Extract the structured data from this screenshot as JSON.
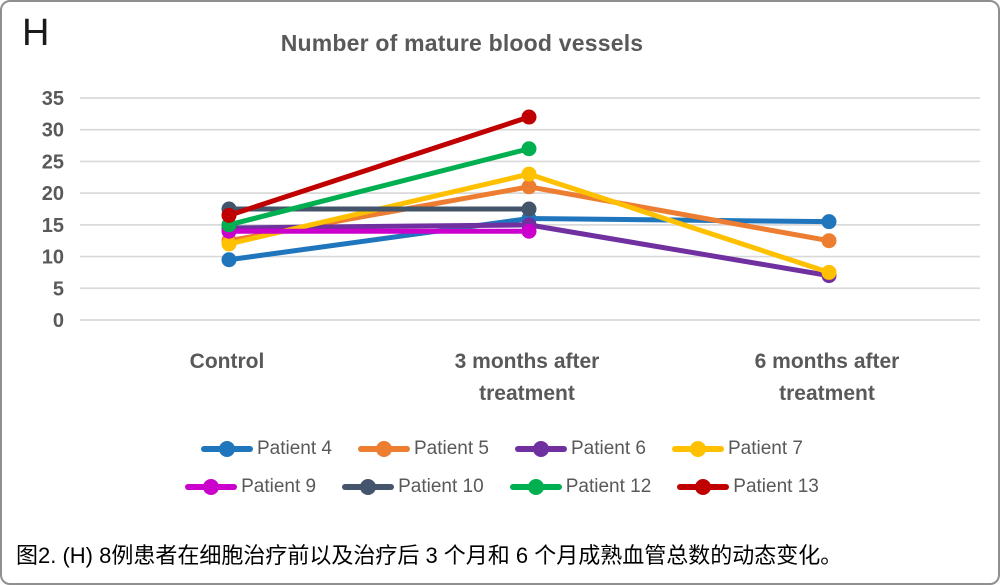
{
  "figure_label": "H",
  "caption": "图2. (H) 8例患者在细胞治疗前以及治疗后 3 个月和 6 个月成熟血管总数的动态变化。",
  "chart_data": {
    "type": "line",
    "title": "Number of mature blood vessels",
    "categories": [
      "Control",
      "3 months after treatment",
      "6 months after treatment"
    ],
    "y_ticks": [
      35,
      30,
      25,
      20,
      15,
      10,
      5,
      0
    ],
    "ylim": [
      0,
      35
    ],
    "grid": true,
    "legend_position": "bottom",
    "colors": {
      "gridline": "#d9d9d9",
      "axis_text": "#595959",
      "title_text": "#595959"
    },
    "series": [
      {
        "name": "Patient 4",
        "color": "#2076bc",
        "values": [
          9.5,
          16,
          15.5
        ]
      },
      {
        "name": "Patient 5",
        "color": "#ed7d31",
        "values": [
          12.5,
          21,
          12.5
        ]
      },
      {
        "name": "Patient 6",
        "color": "#7030a0",
        "values": [
          14.5,
          15,
          7
        ]
      },
      {
        "name": "Patient 7",
        "color": "#ffc000",
        "values": [
          12,
          23,
          7.5
        ]
      },
      {
        "name": "Patient 9",
        "color": "#cc00cc",
        "values": [
          14,
          14,
          null
        ]
      },
      {
        "name": "Patient 10",
        "color": "#44546a",
        "values": [
          17.5,
          17.5,
          null
        ]
      },
      {
        "name": "Patient 12",
        "color": "#00b050",
        "values": [
          15,
          27,
          null
        ]
      },
      {
        "name": "Patient 13",
        "color": "#c00000",
        "values": [
          16.5,
          32,
          null
        ]
      }
    ]
  }
}
